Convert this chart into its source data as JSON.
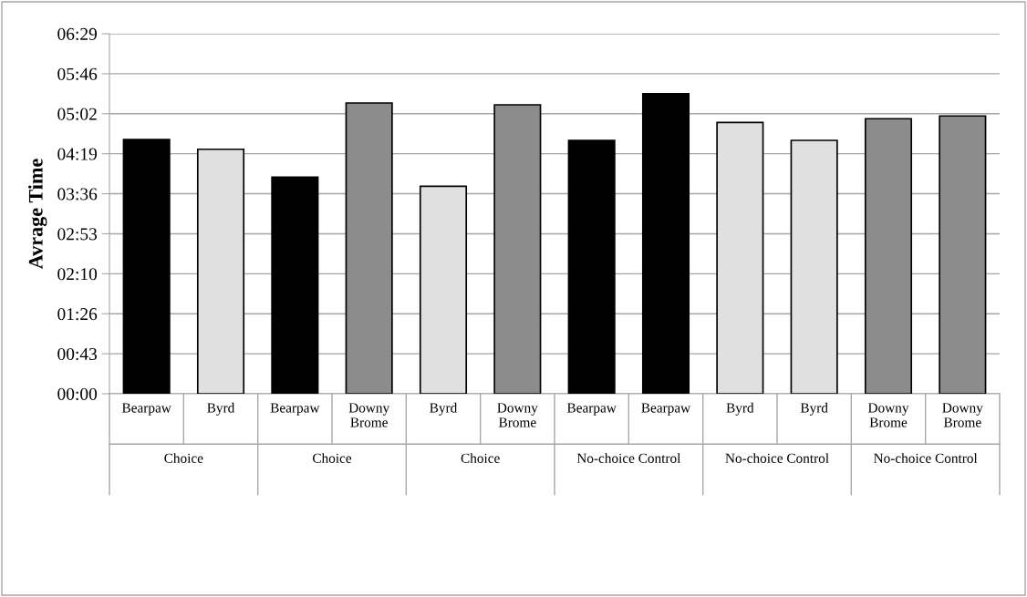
{
  "chart_data": {
    "type": "bar",
    "ylabel": "Avrage Time",
    "categories": [
      "Bearpaw",
      "Byrd",
      "Bearpaw",
      "Downy Brome",
      "Byrd",
      "Downy Brome",
      "Bearpaw",
      "Bearpaw",
      "Byrd",
      "Byrd",
      "Downy Brome",
      "Downy Brome"
    ],
    "values": [
      274.6,
      264,
      234,
      314,
      224,
      312,
      273.6,
      324,
      293,
      273.6,
      297,
      300
    ],
    "colors": [
      "#000000",
      "#e0e0e0",
      "#000000",
      "#8c8c8c",
      "#e0e0e0",
      "#8c8c8c",
      "#000000",
      "#000000",
      "#e0e0e0",
      "#e0e0e0",
      "#8c8c8c",
      "#8c8c8c"
    ],
    "annotations": [
      "Choice",
      "Choice",
      "Choice",
      "No-choice Control",
      "No-choice Control",
      "No-choice Control"
    ],
    "ylim": [
      0,
      388.8
    ],
    "yticks": [
      {
        "value": 0,
        "label": "00:00"
      },
      {
        "value": 43.2,
        "label": "00:43"
      },
      {
        "value": 86.4,
        "label": "01:26"
      },
      {
        "value": 129.6,
        "label": "02:10"
      },
      {
        "value": 172.8,
        "label": "02:53"
      },
      {
        "value": 216,
        "label": "03:36"
      },
      {
        "value": 259.2,
        "label": "04:19"
      },
      {
        "value": 302.4,
        "label": "05:02"
      },
      {
        "value": 345.6,
        "label": "05:46"
      },
      {
        "value": 388.8,
        "label": "06:29"
      }
    ],
    "grid": "y",
    "legend": false
  }
}
